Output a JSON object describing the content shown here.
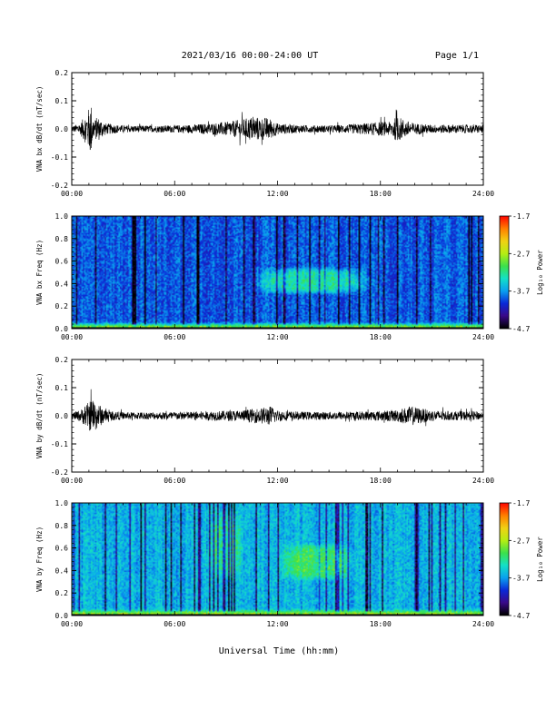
{
  "header": {
    "date_range": "2021/03/16  00:00-24:00 UT",
    "page": "Page 1/1"
  },
  "x_axis": {
    "ticks": [
      "00:00",
      "06:00",
      "12:00",
      "18:00",
      "24:00"
    ],
    "label": "Universal Time (hh:mm)"
  },
  "colorbar": {
    "label": "Log₁₀ Power",
    "ticks": [
      "-1.7",
      "-2.7",
      "-3.7",
      "-4.7"
    ],
    "colors": [
      "#000000",
      "#3a0a8a",
      "#0a2ad8",
      "#0aa0f0",
      "#14e0c8",
      "#3ce04c",
      "#b4ee14",
      "#f0d214",
      "#ff8200",
      "#ff0a00"
    ]
  },
  "chart_data": [
    {
      "type": "line",
      "ylabel": "VNA bx dB/dt (nT/sec)",
      "xlim": [
        0,
        24
      ],
      "ylim": [
        -0.2,
        0.2
      ],
      "yticks": [
        "0.2",
        "0.1",
        "0.0",
        "-0.1",
        "-0.2"
      ],
      "series": [
        {
          "x": [
            0,
            0.5,
            1.0,
            1.1,
            1.3,
            1.5,
            2.0,
            3,
            4,
            5,
            6,
            7,
            8,
            9,
            10,
            10.6,
            11,
            11.5,
            12,
            13,
            14,
            15,
            16,
            17,
            18,
            18.5,
            19,
            19.5,
            20,
            21,
            22,
            23,
            24
          ],
          "y_amplitude": [
            0.01,
            0.02,
            0.075,
            0.1,
            0.03,
            0.045,
            0.02,
            0.012,
            0.012,
            0.012,
            0.013,
            0.015,
            0.02,
            0.025,
            0.035,
            0.045,
            0.04,
            0.04,
            0.02,
            0.015,
            0.013,
            0.013,
            0.015,
            0.02,
            0.025,
            0.025,
            0.045,
            0.03,
            0.02,
            0.015,
            0.015,
            0.015,
            0.015
          ]
        }
      ]
    },
    {
      "type": "heatmap",
      "ylabel": "VNA bx Freq (Hz)",
      "xlim": [
        0,
        24
      ],
      "ylim": [
        0.0,
        1.0
      ],
      "yticks": [
        "1.0",
        "0.8",
        "0.6",
        "0.4",
        "0.2",
        "0.0"
      ],
      "zlim": [
        -4.7,
        -1.7
      ],
      "background_log_power": -3.9,
      "low_freq_log_power": -2.2,
      "enhanced_regions": [
        {
          "x_range": [
            10.5,
            17.5
          ],
          "y_range": [
            0.3,
            0.55
          ],
          "log_power": -3.3
        }
      ]
    },
    {
      "type": "line",
      "ylabel": "VNA by dB/dt (nT/sec)",
      "xlim": [
        0,
        24
      ],
      "ylim": [
        -0.2,
        0.2
      ],
      "yticks": [
        "0.2",
        "0.1",
        "0.0",
        "-0.1",
        "-0.2"
      ],
      "series": [
        {
          "x": [
            0,
            0.5,
            1.0,
            1.2,
            1.6,
            2.0,
            3,
            4,
            5,
            6,
            7,
            8,
            9,
            10,
            11,
            11.6,
            12,
            13,
            14,
            15,
            16,
            17,
            18,
            19,
            19.8,
            20.5,
            21,
            22,
            23,
            24
          ],
          "y_amplitude": [
            0.012,
            0.02,
            0.05,
            0.065,
            0.04,
            0.02,
            0.013,
            0.013,
            0.013,
            0.014,
            0.015,
            0.017,
            0.018,
            0.02,
            0.028,
            0.035,
            0.02,
            0.015,
            0.014,
            0.014,
            0.015,
            0.016,
            0.018,
            0.022,
            0.035,
            0.025,
            0.02,
            0.016,
            0.016,
            0.015
          ]
        }
      ]
    },
    {
      "type": "heatmap",
      "ylabel": "VNA by Freq (Hz)",
      "xlim": [
        0,
        24
      ],
      "ylim": [
        0.0,
        1.0
      ],
      "yticks": [
        "1.0",
        "0.8",
        "0.6",
        "0.4",
        "0.2",
        "0.0"
      ],
      "zlim": [
        -4.7,
        -1.7
      ],
      "background_log_power": -3.6,
      "low_freq_log_power": -2.2,
      "enhanced_regions": [
        {
          "x_range": [
            8.0,
            10.0
          ],
          "y_range": [
            0.3,
            0.95
          ],
          "log_power": -3.2
        },
        {
          "x_range": [
            12.0,
            16.5
          ],
          "y_range": [
            0.3,
            0.65
          ],
          "log_power": -3.1
        }
      ]
    }
  ]
}
